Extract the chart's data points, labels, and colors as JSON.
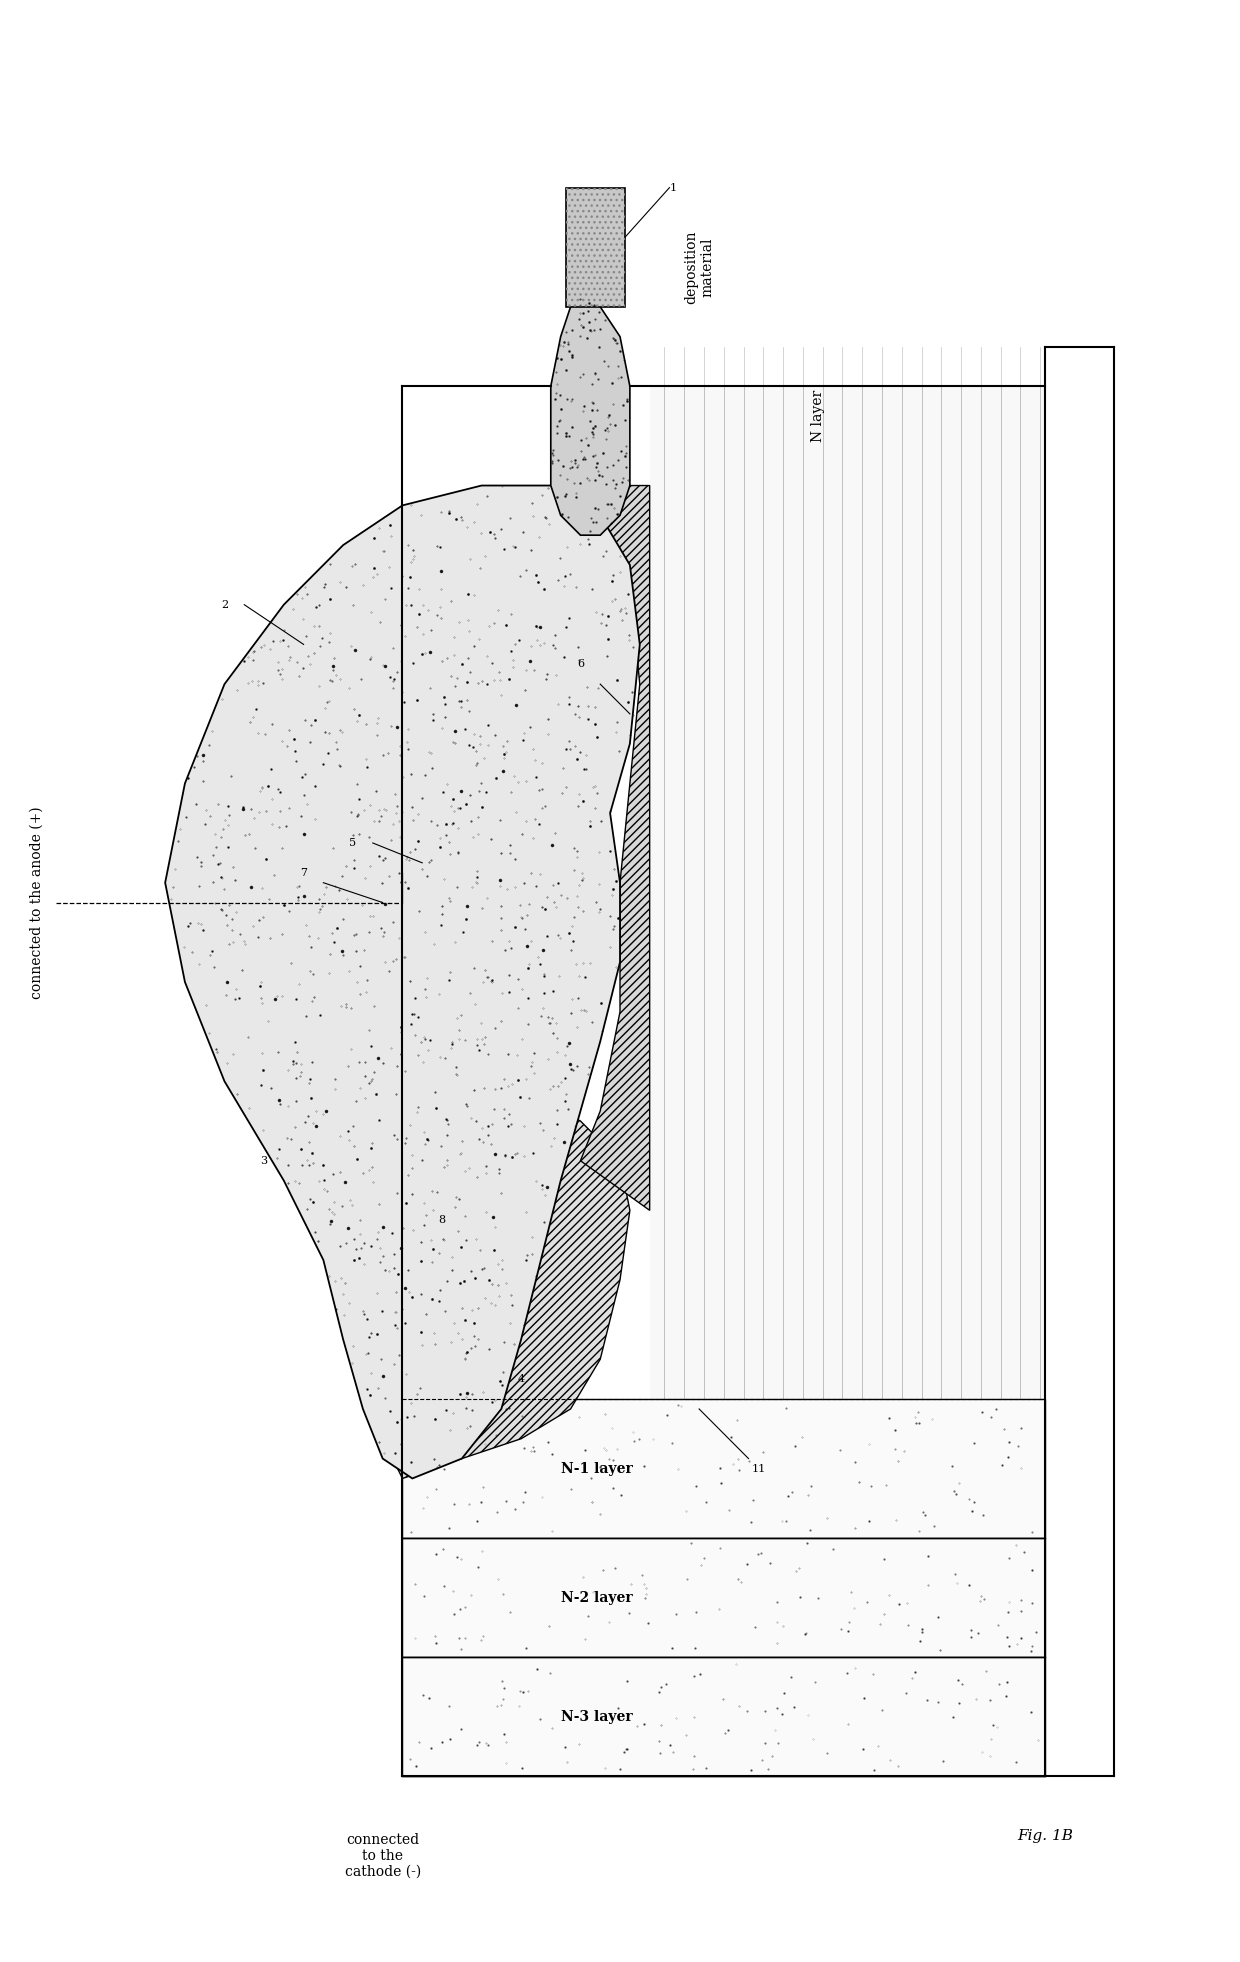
{
  "bg_color": "#ffffff",
  "line_color": "#000000",
  "text_color": "#000000",
  "fig_label": "Fig. 1B",
  "labels": {
    "deposition_material": "deposition\nmaterial",
    "N_layer": "N layer",
    "N1_layer": "N-1 layer",
    "N2_layer": "N-2 layer",
    "N3_layer": "N-3 layer",
    "anode": "connected to the anode (+)",
    "cathode": "connected\nto the\ncathode (-)",
    "ref1": "1",
    "ref2": "2",
    "ref3": "3",
    "ref4": "4",
    "ref5": "5",
    "ref6": "6",
    "ref7": "7",
    "ref8": "8",
    "ref11": "11"
  }
}
